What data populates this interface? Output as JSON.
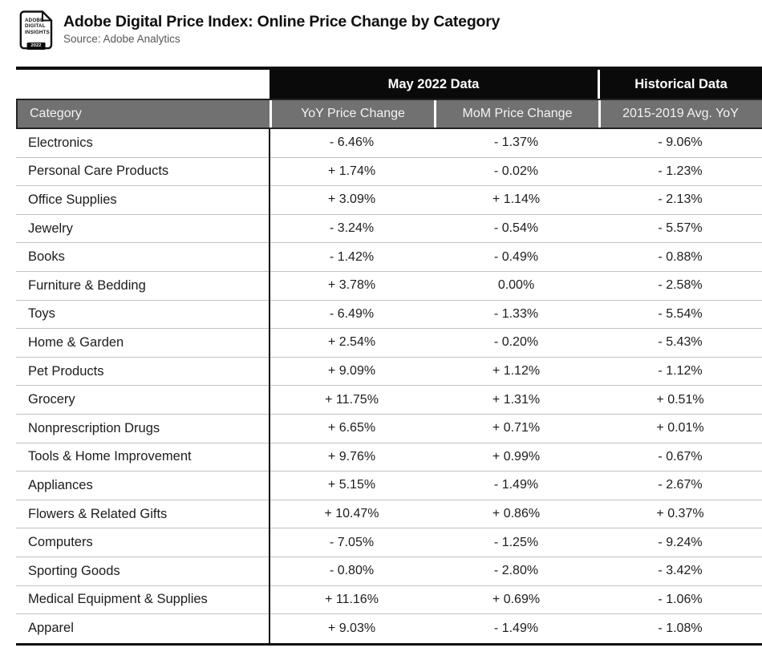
{
  "header": {
    "logo": {
      "line1": "ADOBE",
      "line2": "DIGITAL",
      "line3": "INSIGHTS",
      "year": "2022"
    },
    "title": "Adobe Digital Price Index: Online Price Change by Category",
    "source": "Source: Adobe Analytics"
  },
  "table": {
    "group_headers": [
      {
        "label": "May 2022 Data"
      },
      {
        "label": "Historical Data"
      }
    ],
    "columns": [
      "Category",
      "YoY Price Change",
      "MoM Price Change",
      "2015-2019 Avg. YoY"
    ],
    "rows": [
      {
        "category": "Electronics",
        "yoy": "- 6.46%",
        "mom": "- 1.37%",
        "hist": "- 9.06%"
      },
      {
        "category": "Personal Care Products",
        "yoy": "+ 1.74%",
        "mom": "- 0.02%",
        "hist": "- 1.23%"
      },
      {
        "category": "Office Supplies",
        "yoy": "+ 3.09%",
        "mom": "+ 1.14%",
        "hist": "- 2.13%"
      },
      {
        "category": "Jewelry",
        "yoy": "- 3.24%",
        "mom": "- 0.54%",
        "hist": "- 5.57%"
      },
      {
        "category": "Books",
        "yoy": "- 1.42%",
        "mom": "- 0.49%",
        "hist": "- 0.88%"
      },
      {
        "category": "Furniture & Bedding",
        "yoy": "+ 3.78%",
        "mom": "0.00%",
        "hist": "- 2.58%"
      },
      {
        "category": "Toys",
        "yoy": "- 6.49%",
        "mom": "- 1.33%",
        "hist": "- 5.54%"
      },
      {
        "category": "Home & Garden",
        "yoy": "+ 2.54%",
        "mom": "- 0.20%",
        "hist": "- 5.43%"
      },
      {
        "category": "Pet Products",
        "yoy": "+ 9.09%",
        "mom": "+ 1.12%",
        "hist": "- 1.12%"
      },
      {
        "category": "Grocery",
        "yoy": "+ 11.75%",
        "mom": "+ 1.31%",
        "hist": "+ 0.51%"
      },
      {
        "category": "Nonprescription Drugs",
        "yoy": "+ 6.65%",
        "mom": "+ 0.71%",
        "hist": "+ 0.01%"
      },
      {
        "category": "Tools & Home Improvement",
        "yoy": "+ 9.76%",
        "mom": "+ 0.99%",
        "hist": "- 0.67%"
      },
      {
        "category": "Appliances",
        "yoy": "+ 5.15%",
        "mom": "- 1.49%",
        "hist": "- 2.67%"
      },
      {
        "category": "Flowers & Related Gifts",
        "yoy": "+ 10.47%",
        "mom": "+ 0.86%",
        "hist": "+ 0.37%"
      },
      {
        "category": "Computers",
        "yoy": "- 7.05%",
        "mom": "- 1.25%",
        "hist": "- 9.24%"
      },
      {
        "category": "Sporting Goods",
        "yoy": "- 0.80%",
        "mom": "- 2.80%",
        "hist": "- 3.42%"
      },
      {
        "category": "Medical Equipment & Supplies",
        "yoy": "+ 11.16%",
        "mom": "+ 0.69%",
        "hist": "- 1.06%"
      },
      {
        "category": "Apparel",
        "yoy": "+ 9.03%",
        "mom": "- 1.49%",
        "hist": "- 1.08%"
      }
    ]
  },
  "colors": {
    "header_black": "#0a0a0a",
    "header_gray": "#717171",
    "row_divider": "#c3c3c3",
    "body_text": "#1c1c1c"
  },
  "chart_data": {
    "type": "table",
    "title": "Adobe Digital Price Index: Online Price Change by Category",
    "source": "Source: Adobe Analytics",
    "column_groups": [
      {
        "label": "May 2022 Data",
        "columns": [
          "YoY Price Change",
          "MoM Price Change"
        ]
      },
      {
        "label": "Historical Data",
        "columns": [
          "2015-2019 Avg. YoY"
        ]
      }
    ],
    "columns": [
      "Category",
      "YoY Price Change (%)",
      "MoM Price Change (%)",
      "2015-2019 Avg. YoY (%)"
    ],
    "rows": [
      [
        "Electronics",
        -6.46,
        -1.37,
        -9.06
      ],
      [
        "Personal Care Products",
        1.74,
        -0.02,
        -1.23
      ],
      [
        "Office Supplies",
        3.09,
        1.14,
        -2.13
      ],
      [
        "Jewelry",
        -3.24,
        -0.54,
        -5.57
      ],
      [
        "Books",
        -1.42,
        -0.49,
        -0.88
      ],
      [
        "Furniture & Bedding",
        3.78,
        0.0,
        -2.58
      ],
      [
        "Toys",
        -6.49,
        -1.33,
        -5.54
      ],
      [
        "Home & Garden",
        2.54,
        -0.2,
        -5.43
      ],
      [
        "Pet Products",
        9.09,
        1.12,
        -1.12
      ],
      [
        "Grocery",
        11.75,
        1.31,
        0.51
      ],
      [
        "Nonprescription Drugs",
        6.65,
        0.71,
        0.01
      ],
      [
        "Tools & Home Improvement",
        9.76,
        0.99,
        -0.67
      ],
      [
        "Appliances",
        5.15,
        -1.49,
        -2.67
      ],
      [
        "Flowers & Related Gifts",
        10.47,
        0.86,
        0.37
      ],
      [
        "Computers",
        -7.05,
        -1.25,
        -9.24
      ],
      [
        "Sporting Goods",
        -0.8,
        -2.8,
        -3.42
      ],
      [
        "Medical Equipment & Supplies",
        11.16,
        0.69,
        -1.06
      ],
      [
        "Apparel",
        9.03,
        -1.49,
        -1.08
      ]
    ]
  }
}
